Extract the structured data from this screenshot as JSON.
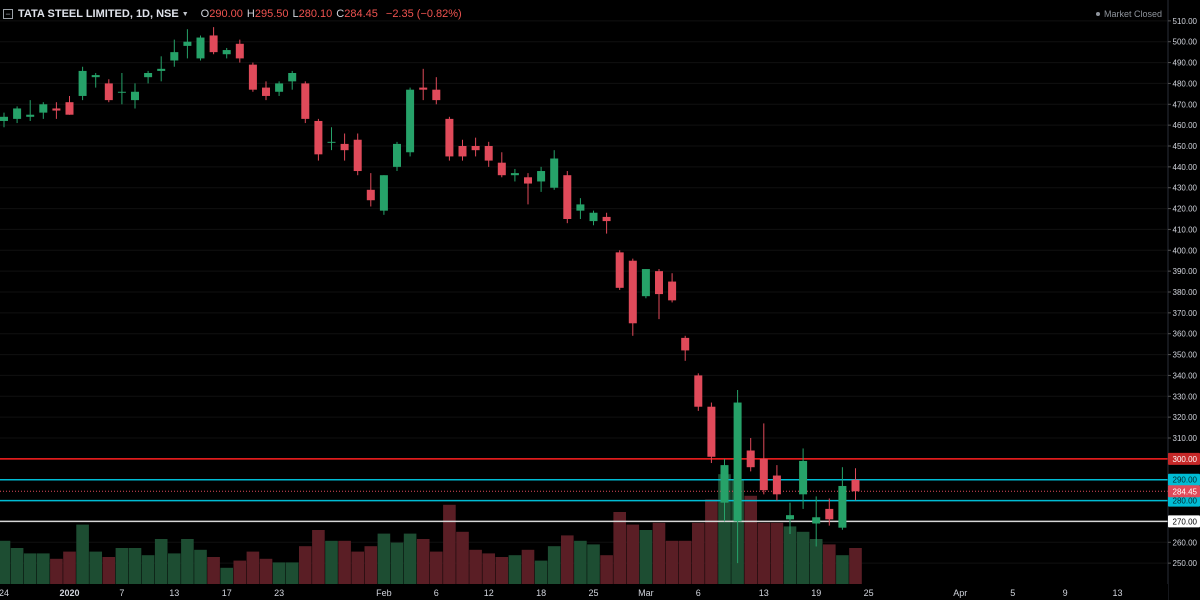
{
  "legend": {
    "symbol": "TATA STEEL LIMITED, 1D, NSE",
    "open_label": "O",
    "open": "290.00",
    "high_label": "H",
    "high": "295.50",
    "low_label": "L",
    "low": "280.10",
    "close_label": "C",
    "close": "284.45",
    "change": "−2.35 (−0.82%)"
  },
  "status": "Market Closed",
  "colors": {
    "background": "#000000",
    "up": "#26a269",
    "down": "#e04a5a",
    "volume_up": "#1d4d32",
    "volume_down": "#5a1e25",
    "line_red": "#ff1f1f",
    "line_cyan": "#00bcd4",
    "line_white": "#d6d6d6",
    "grid": "#111111"
  },
  "chart_data": {
    "type": "candlestick",
    "y_axis": {
      "range": [
        240,
        520
      ],
      "ticks": [
        "250.00",
        "260.00",
        "270.00",
        "280.00",
        "290.00",
        "300.00",
        "310.00",
        "320.00",
        "330.00",
        "340.00",
        "350.00",
        "360.00",
        "370.00",
        "380.00",
        "390.00",
        "400.00",
        "410.00",
        "420.00",
        "430.00",
        "440.00",
        "450.00",
        "460.00",
        "470.00",
        "480.00",
        "490.00",
        "500.00",
        "510.00"
      ]
    },
    "x_axis": {
      "labels": [
        {
          "text": "24",
          "index": 0
        },
        {
          "text": "2020",
          "index": 5,
          "bold": true
        },
        {
          "text": "7",
          "index": 9
        },
        {
          "text": "13",
          "index": 13
        },
        {
          "text": "17",
          "index": 17
        },
        {
          "text": "23",
          "index": 21
        },
        {
          "text": "Feb",
          "index": 29
        },
        {
          "text": "6",
          "index": 33
        },
        {
          "text": "12",
          "index": 37
        },
        {
          "text": "18",
          "index": 41
        },
        {
          "text": "25",
          "index": 45
        },
        {
          "text": "Mar",
          "index": 49
        },
        {
          "text": "6",
          "index": 53
        },
        {
          "text": "13",
          "index": 58
        },
        {
          "text": "19",
          "index": 62
        },
        {
          "text": "25",
          "index": 66
        },
        {
          "text": "Apr",
          "index": 73
        },
        {
          "text": "5",
          "index": 77
        },
        {
          "text": "9",
          "index": 81
        },
        {
          "text": "13",
          "index": 85
        }
      ]
    },
    "candles": [
      {
        "o": 462,
        "h": 466,
        "l": 459,
        "c": 464,
        "v": 0.24
      },
      {
        "o": 463,
        "h": 469,
        "l": 461,
        "c": 468,
        "v": 0.2
      },
      {
        "o": 464,
        "h": 472,
        "l": 462,
        "c": 465,
        "v": 0.17
      },
      {
        "o": 466,
        "h": 471,
        "l": 463,
        "c": 470,
        "v": 0.17
      },
      {
        "o": 468,
        "h": 471,
        "l": 463,
        "c": 467,
        "v": 0.14
      },
      {
        "o": 471,
        "h": 474,
        "l": 465,
        "c": 465,
        "v": 0.18
      },
      {
        "o": 474,
        "h": 488,
        "l": 472,
        "c": 486,
        "v": 0.33
      },
      {
        "o": 483,
        "h": 485,
        "l": 478,
        "c": 484,
        "v": 0.18
      },
      {
        "o": 480,
        "h": 482,
        "l": 471,
        "c": 472,
        "v": 0.15
      },
      {
        "o": 476,
        "h": 485,
        "l": 470,
        "c": 476,
        "v": 0.2
      },
      {
        "o": 472,
        "h": 480,
        "l": 468,
        "c": 476,
        "v": 0.2
      },
      {
        "o": 483,
        "h": 486,
        "l": 480,
        "c": 485,
        "v": 0.16
      },
      {
        "o": 486,
        "h": 493,
        "l": 481,
        "c": 487,
        "v": 0.25
      },
      {
        "o": 491,
        "h": 501,
        "l": 488,
        "c": 495,
        "v": 0.17
      },
      {
        "o": 498,
        "h": 506,
        "l": 492,
        "c": 500,
        "v": 0.25
      },
      {
        "o": 492,
        "h": 503,
        "l": 491,
        "c": 502,
        "v": 0.19
      },
      {
        "o": 503,
        "h": 507,
        "l": 494,
        "c": 495,
        "v": 0.15
      },
      {
        "o": 494,
        "h": 497,
        "l": 492,
        "c": 496,
        "v": 0.09
      },
      {
        "o": 499,
        "h": 501,
        "l": 490,
        "c": 492,
        "v": 0.13
      },
      {
        "o": 489,
        "h": 490,
        "l": 476,
        "c": 477,
        "v": 0.18
      },
      {
        "o": 478,
        "h": 481,
        "l": 472,
        "c": 474,
        "v": 0.14
      },
      {
        "o": 476,
        "h": 481,
        "l": 474,
        "c": 480,
        "v": 0.12
      },
      {
        "o": 481,
        "h": 486,
        "l": 477,
        "c": 485,
        "v": 0.12
      },
      {
        "o": 480,
        "h": 481,
        "l": 461,
        "c": 463,
        "v": 0.21
      },
      {
        "o": 462,
        "h": 463,
        "l": 443,
        "c": 446,
        "v": 0.3
      },
      {
        "o": 452,
        "h": 459,
        "l": 448,
        "c": 452,
        "v": 0.24
      },
      {
        "o": 451,
        "h": 456,
        "l": 443,
        "c": 448,
        "v": 0.24
      },
      {
        "o": 453,
        "h": 456,
        "l": 436,
        "c": 438,
        "v": 0.18
      },
      {
        "o": 429,
        "h": 437,
        "l": 421,
        "c": 424,
        "v": 0.21
      },
      {
        "o": 419,
        "h": 436,
        "l": 417,
        "c": 436,
        "v": 0.28
      },
      {
        "o": 440,
        "h": 452,
        "l": 438,
        "c": 451,
        "v": 0.23
      },
      {
        "o": 447,
        "h": 478,
        "l": 445,
        "c": 477,
        "v": 0.28
      },
      {
        "o": 478,
        "h": 487,
        "l": 472,
        "c": 477,
        "v": 0.25
      },
      {
        "o": 477,
        "h": 483,
        "l": 470,
        "c": 472,
        "v": 0.18
      },
      {
        "o": 463,
        "h": 464,
        "l": 443,
        "c": 445,
        "v": 0.44
      },
      {
        "o": 450,
        "h": 453,
        "l": 443,
        "c": 445,
        "v": 0.29
      },
      {
        "o": 450,
        "h": 454,
        "l": 445,
        "c": 448,
        "v": 0.19
      },
      {
        "o": 450,
        "h": 452,
        "l": 440,
        "c": 443,
        "v": 0.17
      },
      {
        "o": 442,
        "h": 447,
        "l": 435,
        "c": 436,
        "v": 0.15
      },
      {
        "o": 436,
        "h": 439,
        "l": 433,
        "c": 437,
        "v": 0.16
      },
      {
        "o": 435,
        "h": 437,
        "l": 422,
        "c": 432,
        "v": 0.19
      },
      {
        "o": 433,
        "h": 440,
        "l": 428,
        "c": 438,
        "v": 0.13
      },
      {
        "o": 430,
        "h": 448,
        "l": 429,
        "c": 444,
        "v": 0.21
      },
      {
        "o": 436,
        "h": 438,
        "l": 413,
        "c": 415,
        "v": 0.27
      },
      {
        "o": 419,
        "h": 425,
        "l": 415,
        "c": 422,
        "v": 0.24
      },
      {
        "o": 414,
        "h": 419,
        "l": 412,
        "c": 418,
        "v": 0.22
      },
      {
        "o": 416,
        "h": 418,
        "l": 408,
        "c": 414,
        "v": 0.16
      },
      {
        "o": 399,
        "h": 400,
        "l": 381,
        "c": 382,
        "v": 0.4
      },
      {
        "o": 395,
        "h": 396,
        "l": 359,
        "c": 365,
        "v": 0.33
      },
      {
        "o": 378,
        "h": 391,
        "l": 377,
        "c": 391,
        "v": 0.3
      },
      {
        "o": 390,
        "h": 391,
        "l": 367,
        "c": 379,
        "v": 0.34
      },
      {
        "o": 385,
        "h": 389,
        "l": 375,
        "c": 376,
        "v": 0.24
      },
      {
        "o": 358,
        "h": 359,
        "l": 347,
        "c": 352,
        "v": 0.24
      },
      {
        "o": 340,
        "h": 341,
        "l": 323,
        "c": 325,
        "v": 0.34
      },
      {
        "o": 325,
        "h": 327,
        "l": 298,
        "c": 301,
        "v": 0.47
      },
      {
        "o": 279,
        "h": 300,
        "l": 270,
        "c": 297,
        "v": 0.61
      },
      {
        "o": 270,
        "h": 333,
        "l": 250,
        "c": 327,
        "v": 0.58
      },
      {
        "o": 304,
        "h": 310,
        "l": 294,
        "c": 296,
        "v": 0.49
      },
      {
        "o": 300,
        "h": 317,
        "l": 283,
        "c": 285,
        "v": 0.34
      },
      {
        "o": 292,
        "h": 297,
        "l": 280,
        "c": 283,
        "v": 0.34
      },
      {
        "o": 271,
        "h": 279,
        "l": 264,
        "c": 273,
        "v": 0.32
      },
      {
        "o": 283,
        "h": 305,
        "l": 276,
        "c": 299,
        "v": 0.29
      },
      {
        "o": 269,
        "h": 282,
        "l": 258,
        "c": 272,
        "v": 0.25
      },
      {
        "o": 276,
        "h": 281,
        "l": 268,
        "c": 271,
        "v": 0.22
      },
      {
        "o": 267,
        "h": 296,
        "l": 266,
        "c": 287,
        "v": 0.16
      },
      {
        "o": 290,
        "h": 295.5,
        "l": 280.1,
        "c": 284.45,
        "v": 0.2
      }
    ],
    "horizontal_lines": [
      {
        "value": 300,
        "label": "300.00",
        "color": "#ff1f1f",
        "badge_bg": "#c62828",
        "badge_fg": "#ffffff"
      },
      {
        "value": 290,
        "label": "290.00",
        "color": "#00bcd4",
        "badge_bg": "#00bcd4",
        "badge_fg": "#002a30"
      },
      {
        "value": 280,
        "label": "280.00",
        "color": "#00bcd4",
        "badge_bg": "#00bcd4",
        "badge_fg": "#002a30"
      },
      {
        "value": 270,
        "label": "270.00",
        "color": "#d6d6d6",
        "badge_bg": "#ffffff",
        "badge_fg": "#000000"
      }
    ],
    "last_price": {
      "value": 284.45,
      "label": "284.45",
      "badge_bg": "#e04a5a",
      "badge_fg": "#ffffff"
    }
  }
}
